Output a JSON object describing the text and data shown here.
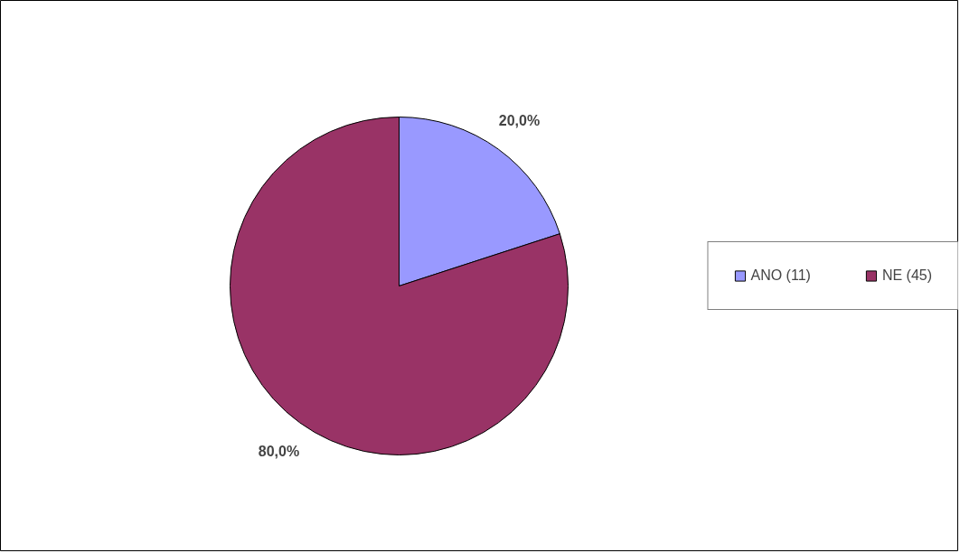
{
  "chart_data": {
    "type": "pie",
    "categories": [
      "ANO (11)",
      "NE (45)"
    ],
    "values": [
      20,
      80
    ],
    "colors": [
      "#9999ff",
      "#993366"
    ],
    "value_labels": [
      "20,0%",
      "80,0%"
    ],
    "legend": "right"
  }
}
